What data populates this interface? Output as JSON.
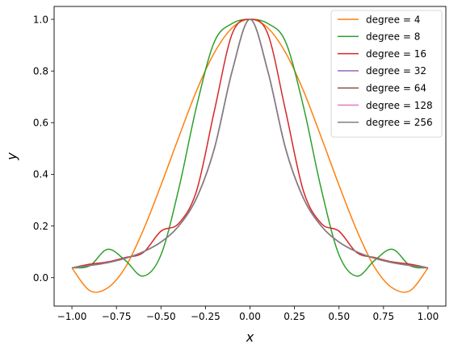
{
  "chart_data": {
    "type": "line",
    "title": "",
    "xlabel": "x",
    "ylabel": "y",
    "xlim": [
      -1.1,
      1.1
    ],
    "ylim": [
      -0.11,
      1.05
    ],
    "xticks": [
      -1.0,
      -0.75,
      -0.5,
      -0.25,
      0.0,
      0.25,
      0.5,
      0.75,
      1.0
    ],
    "xtick_labels": [
      "−1.00",
      "−0.75",
      "−0.50",
      "−0.25",
      "0.00",
      "0.25",
      "0.50",
      "0.75",
      "1.00"
    ],
    "yticks": [
      0.0,
      0.2,
      0.4,
      0.6,
      0.8,
      1.0
    ],
    "ytick_labels": [
      "0.0",
      "0.2",
      "0.4",
      "0.6",
      "0.8",
      "1.0"
    ],
    "grid": false,
    "legend_position": "top-right",
    "x": [
      -1.0,
      -0.9,
      -0.8,
      -0.7,
      -0.6,
      -0.5,
      -0.4,
      -0.3,
      -0.2,
      -0.1,
      0.0,
      0.1,
      0.2,
      0.3,
      0.4,
      0.5,
      0.6,
      0.7,
      0.8,
      0.9,
      1.0
    ],
    "series": [
      {
        "name": "degree = 4",
        "color": "#ff7f0e",
        "values": [
          0.038,
          -0.05,
          -0.04,
          0.04,
          0.183,
          0.358,
          0.544,
          0.724,
          0.871,
          0.967,
          1.0,
          0.967,
          0.871,
          0.724,
          0.544,
          0.358,
          0.183,
          0.04,
          -0.04,
          -0.05,
          0.038
        ]
      },
      {
        "name": "degree = 8",
        "color": "#2ca02c",
        "values": [
          0.038,
          0.046,
          0.11,
          0.067,
          0.006,
          0.088,
          0.344,
          0.663,
          0.913,
          0.984,
          1.0,
          0.984,
          0.913,
          0.663,
          0.344,
          0.088,
          0.006,
          0.067,
          0.11,
          0.046,
          0.038
        ]
      },
      {
        "name": "degree = 16",
        "color": "#d62728",
        "values": [
          0.038,
          0.052,
          0.061,
          0.078,
          0.097,
          0.18,
          0.21,
          0.336,
          0.646,
          0.944,
          1.0,
          0.944,
          0.646,
          0.336,
          0.21,
          0.18,
          0.097,
          0.078,
          0.061,
          0.052,
          0.038
        ]
      },
      {
        "name": "degree = 32",
        "color": "#9467bd",
        "values": [
          0.038,
          0.047,
          0.058,
          0.075,
          0.1,
          0.138,
          0.2,
          0.308,
          0.5,
          0.8,
          1.0,
          0.8,
          0.5,
          0.308,
          0.2,
          0.138,
          0.1,
          0.075,
          0.058,
          0.047,
          0.038
        ]
      },
      {
        "name": "degree = 64",
        "color": "#8c564b",
        "values": [
          0.038,
          0.047,
          0.058,
          0.075,
          0.1,
          0.138,
          0.2,
          0.308,
          0.5,
          0.8,
          1.0,
          0.8,
          0.5,
          0.308,
          0.2,
          0.138,
          0.1,
          0.075,
          0.058,
          0.047,
          0.038
        ]
      },
      {
        "name": "degree = 128",
        "color": "#e377c2",
        "values": [
          0.038,
          0.047,
          0.058,
          0.075,
          0.1,
          0.138,
          0.2,
          0.308,
          0.5,
          0.8,
          1.0,
          0.8,
          0.5,
          0.308,
          0.2,
          0.138,
          0.1,
          0.075,
          0.058,
          0.047,
          0.038
        ]
      },
      {
        "name": "degree = 256",
        "color": "#7f7f7f",
        "values": [
          0.038,
          0.047,
          0.058,
          0.075,
          0.1,
          0.138,
          0.2,
          0.308,
          0.5,
          0.8,
          1.0,
          0.8,
          0.5,
          0.308,
          0.2,
          0.138,
          0.1,
          0.075,
          0.058,
          0.047,
          0.038
        ]
      }
    ]
  }
}
